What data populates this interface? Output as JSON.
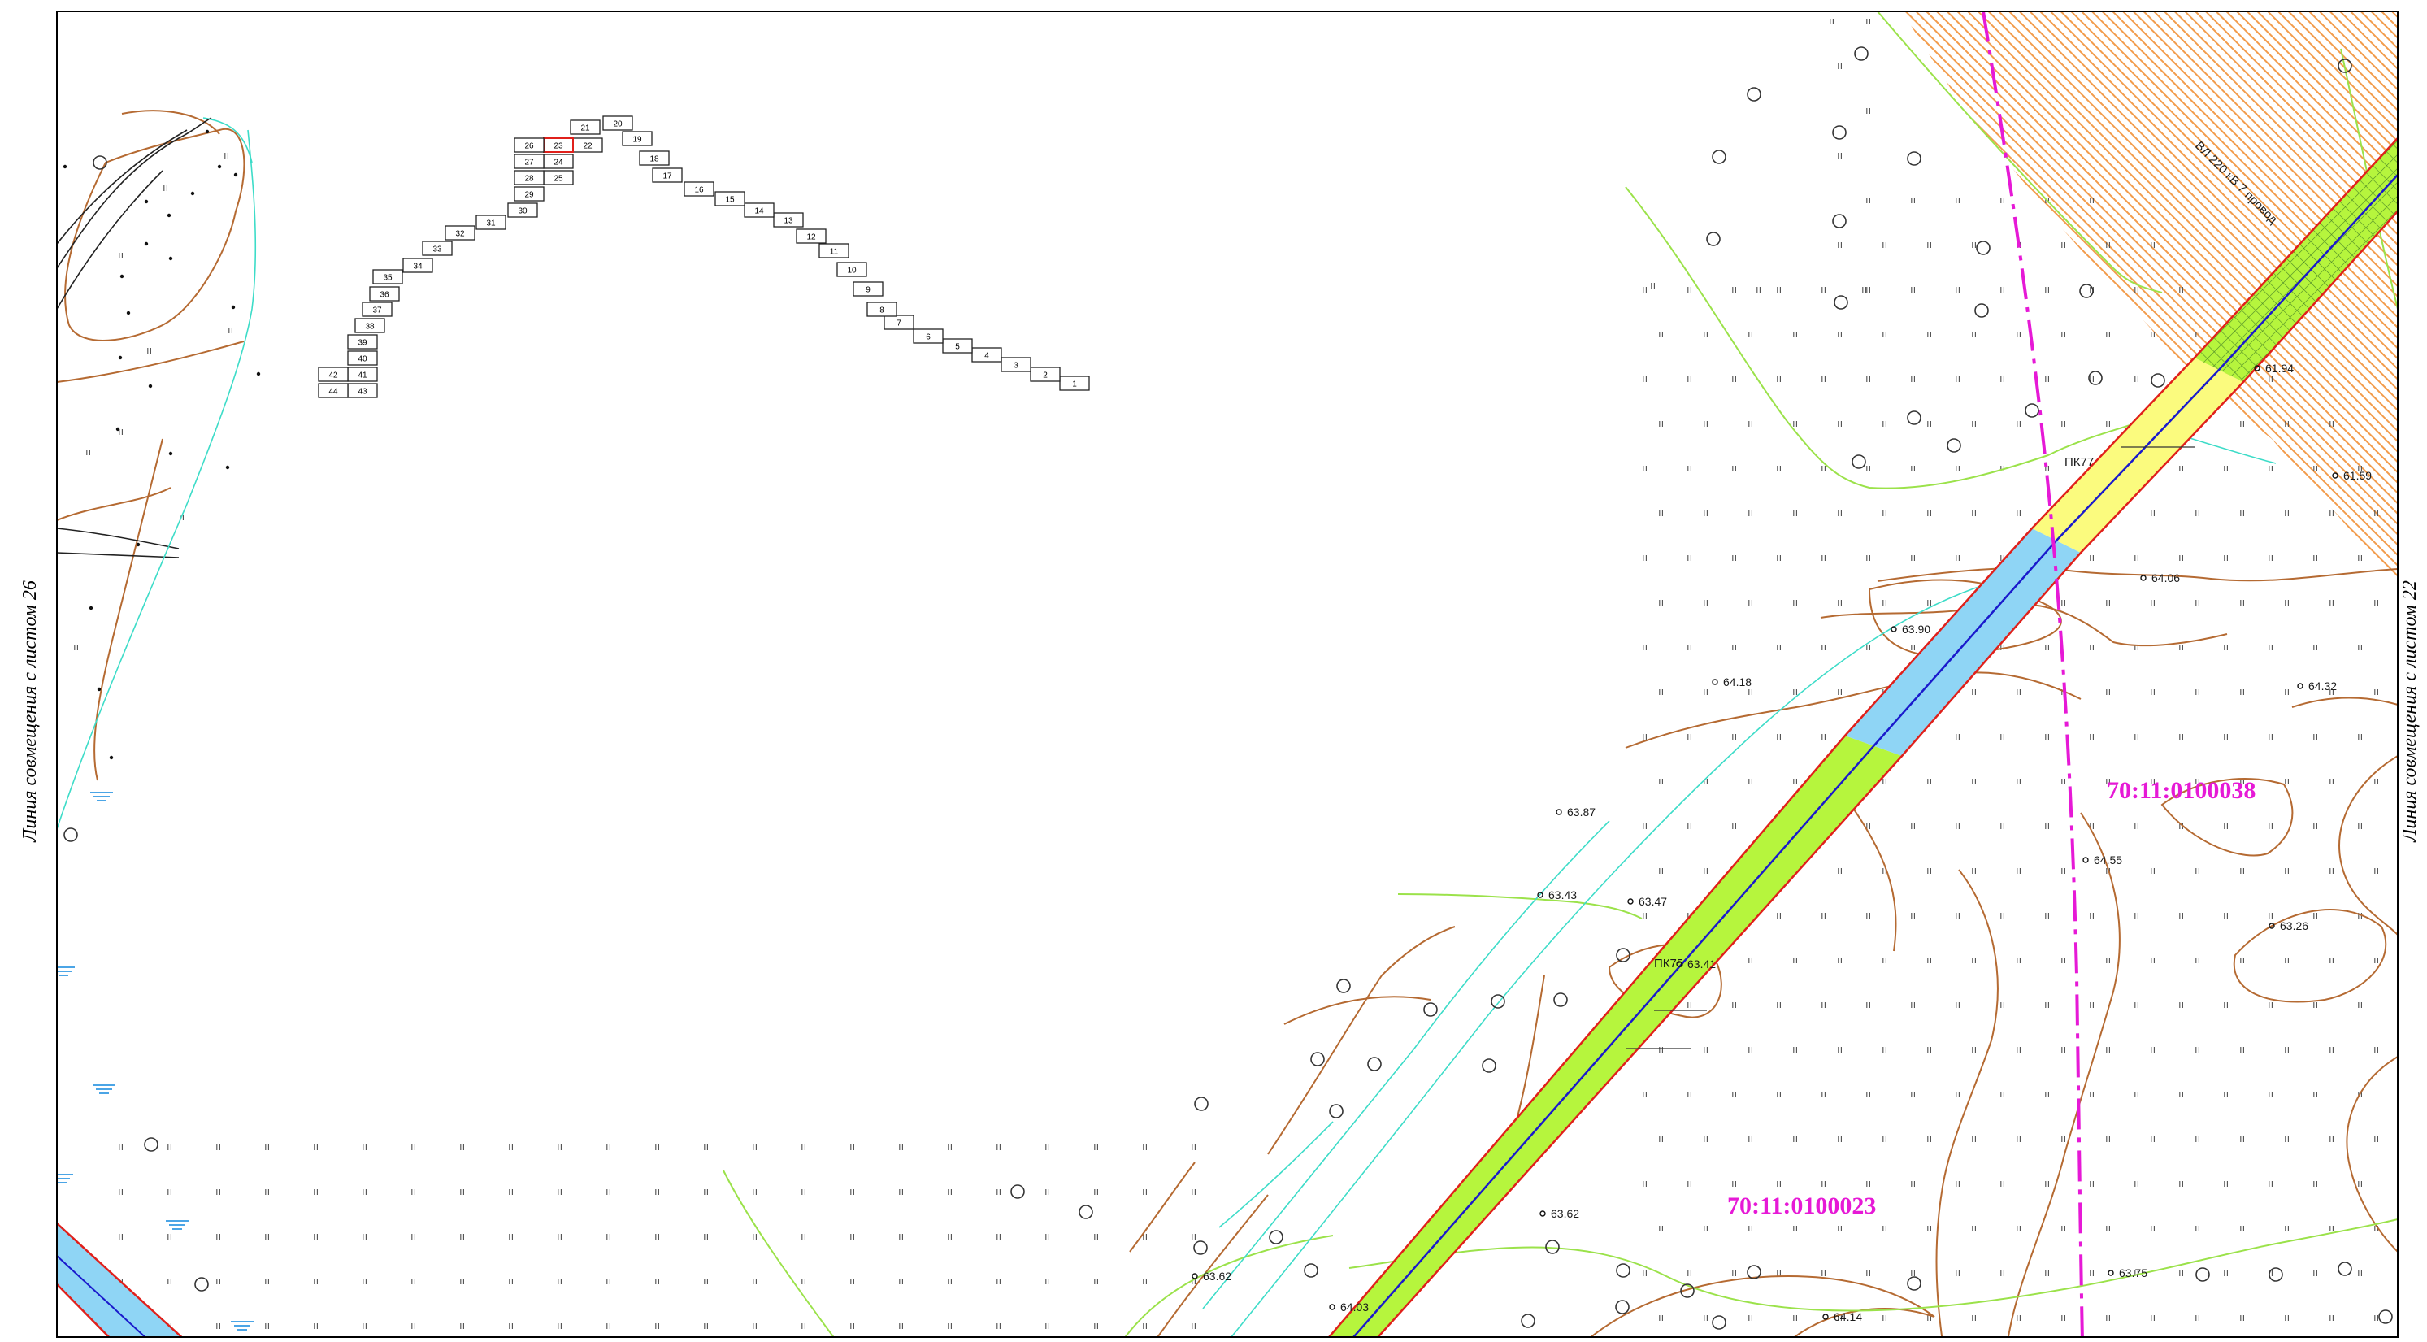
{
  "sheet": {
    "left_side_label": "Линия совмещения с листом 26",
    "right_side_label": "Линия совмещения с листом 22"
  },
  "pickets": [
    {
      "label": "ПК77"
    },
    {
      "label": "ПК75"
    }
  ],
  "powerline_label": "ВЛ 220 кВ 7 провод",
  "parcels": [
    {
      "number": "70:11:0100038"
    },
    {
      "number": "70:11:0100023"
    }
  ],
  "elevation_points": [
    {
      "value": "61.94"
    },
    {
      "value": "61.59"
    },
    {
      "value": "64.06"
    },
    {
      "value": "63.90"
    },
    {
      "value": "64.18"
    },
    {
      "value": "64.32"
    },
    {
      "value": "63.87"
    },
    {
      "value": "64.55"
    },
    {
      "value": "63.43"
    },
    {
      "value": "63.47"
    },
    {
      "value": "63.41"
    },
    {
      "value": "63.26"
    },
    {
      "value": "63.62"
    },
    {
      "value": "63.62"
    },
    {
      "value": "63.75"
    },
    {
      "value": "64.03"
    },
    {
      "value": "64.14"
    }
  ],
  "sheet_index": [
    "1",
    "2",
    "3",
    "4",
    "5",
    "6",
    "7",
    "8",
    "9",
    "10",
    "11",
    "12",
    "13",
    "14",
    "15",
    "16",
    "17",
    "18",
    "19",
    "20",
    "21",
    "22",
    "23",
    "24",
    "25",
    "26",
    "27",
    "28",
    "29",
    "30",
    "31",
    "32",
    "33",
    "34",
    "35",
    "36",
    "37",
    "38",
    "39",
    "40",
    "41",
    "42",
    "43",
    "44"
  ],
  "colors": {
    "corridor_border": "#e0201b",
    "axis_line": "#1a1acc",
    "zone_yellow": "#fbfb7e",
    "zone_blue": "#8fd5f5",
    "zone_green": "#b6f53d",
    "hatch": "#f08a2c",
    "parcel_boundary": "#e619d6",
    "contour": "#b56a32",
    "vegetation": "#9be24a",
    "cyan_line": "#3ddcc8",
    "frame": "#000000"
  }
}
